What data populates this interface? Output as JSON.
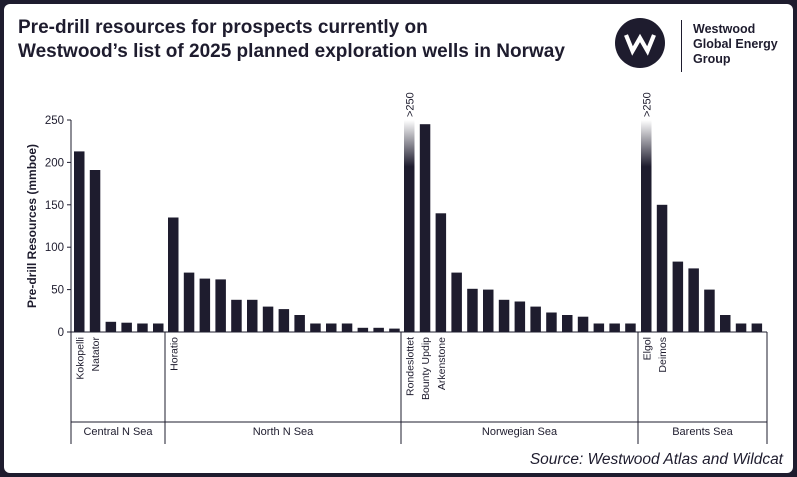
{
  "title_lines": [
    "Pre-drill resources for prospects currently on",
    "Westwood’s list of 2025 planned exploration wells in Norway"
  ],
  "logo": {
    "lines": [
      "Westwood",
      "Global Energy",
      "Group"
    ],
    "icon": "w-mark-icon"
  },
  "source": "Source: Westwood Atlas and Wildcat",
  "colors": {
    "bar": "#1e1c2e",
    "frame": "#1e1c2e",
    "background": "#ffffff"
  },
  "chart_data": {
    "type": "bar",
    "ylabel": "Pre-drill Resources (mmboe)",
    "ylim": [
      0,
      250
    ],
    "yticks": [
      0,
      50,
      100,
      150,
      200,
      250
    ],
    "grid": false,
    "cap_label": ">250",
    "groups": [
      {
        "name": "Central N Sea",
        "labels": [
          "Kokopelli",
          "Natator",
          "",
          "",
          "",
          ""
        ],
        "values": [
          213,
          191,
          12,
          11,
          10,
          10
        ],
        "capped": [
          false,
          false,
          false,
          false,
          false,
          false
        ]
      },
      {
        "name": "North N Sea",
        "labels": [
          "Horatio",
          "",
          "",
          "",
          "",
          "",
          "",
          "",
          "",
          "",
          "",
          "",
          "",
          "",
          ""
        ],
        "values": [
          135,
          70,
          63,
          62,
          38,
          38,
          30,
          27,
          20,
          10,
          10,
          10,
          5,
          5,
          4
        ],
        "capped": [
          false,
          false,
          false,
          false,
          false,
          false,
          false,
          false,
          false,
          false,
          false,
          false,
          false,
          false,
          false
        ]
      },
      {
        "name": "Norwegian Sea",
        "labels": [
          "Rondeslottet",
          "Bounty Updip",
          "Arkenstone",
          "",
          "",
          "",
          "",
          "",
          "",
          "",
          "",
          "",
          "",
          "",
          ""
        ],
        "values": [
          250,
          245,
          140,
          70,
          51,
          50,
          38,
          36,
          30,
          23,
          20,
          18,
          10,
          10,
          10
        ],
        "capped": [
          true,
          false,
          false,
          false,
          false,
          false,
          false,
          false,
          false,
          false,
          false,
          false,
          false,
          false,
          false
        ]
      },
      {
        "name": "Barents Sea",
        "labels": [
          "Elgol",
          "Deimos",
          "",
          "",
          "",
          "",
          "",
          ""
        ],
        "values": [
          250,
          150,
          83,
          75,
          50,
          20,
          10,
          10
        ],
        "capped": [
          true,
          false,
          false,
          false,
          false,
          false,
          false,
          false
        ]
      }
    ]
  }
}
